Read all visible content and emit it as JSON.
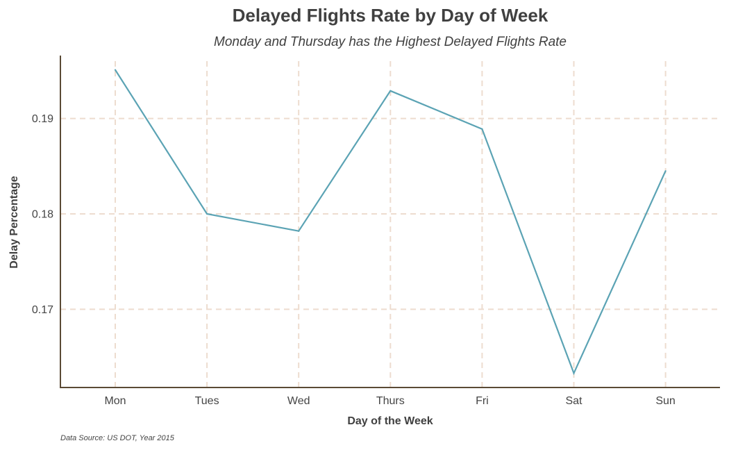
{
  "chart_data": {
    "type": "line",
    "title": "Delayed Flights Rate by Day of Week",
    "subtitle": "Monday and Thursday has the Highest Delayed Flights Rate",
    "xlabel": "Day of the Week",
    "ylabel": "Delay Percentage",
    "caption": "Data Source: US DOT, Year 2015",
    "categories": [
      "Mon",
      "Tues",
      "Wed",
      "Thurs",
      "Fri",
      "Sat",
      "Sun"
    ],
    "series": [
      {
        "values": [
          0.1951,
          0.18,
          0.1782,
          0.1929,
          0.1889,
          0.1633,
          0.1845
        ],
        "color": "#5ba3b4"
      }
    ],
    "yticks": [
      0.17,
      0.18,
      0.19
    ],
    "ytick_labels": [
      "0.17",
      "0.18",
      "0.19"
    ],
    "ylim": [
      0.1618,
      0.1966
    ],
    "grid": true,
    "legend": "none"
  }
}
